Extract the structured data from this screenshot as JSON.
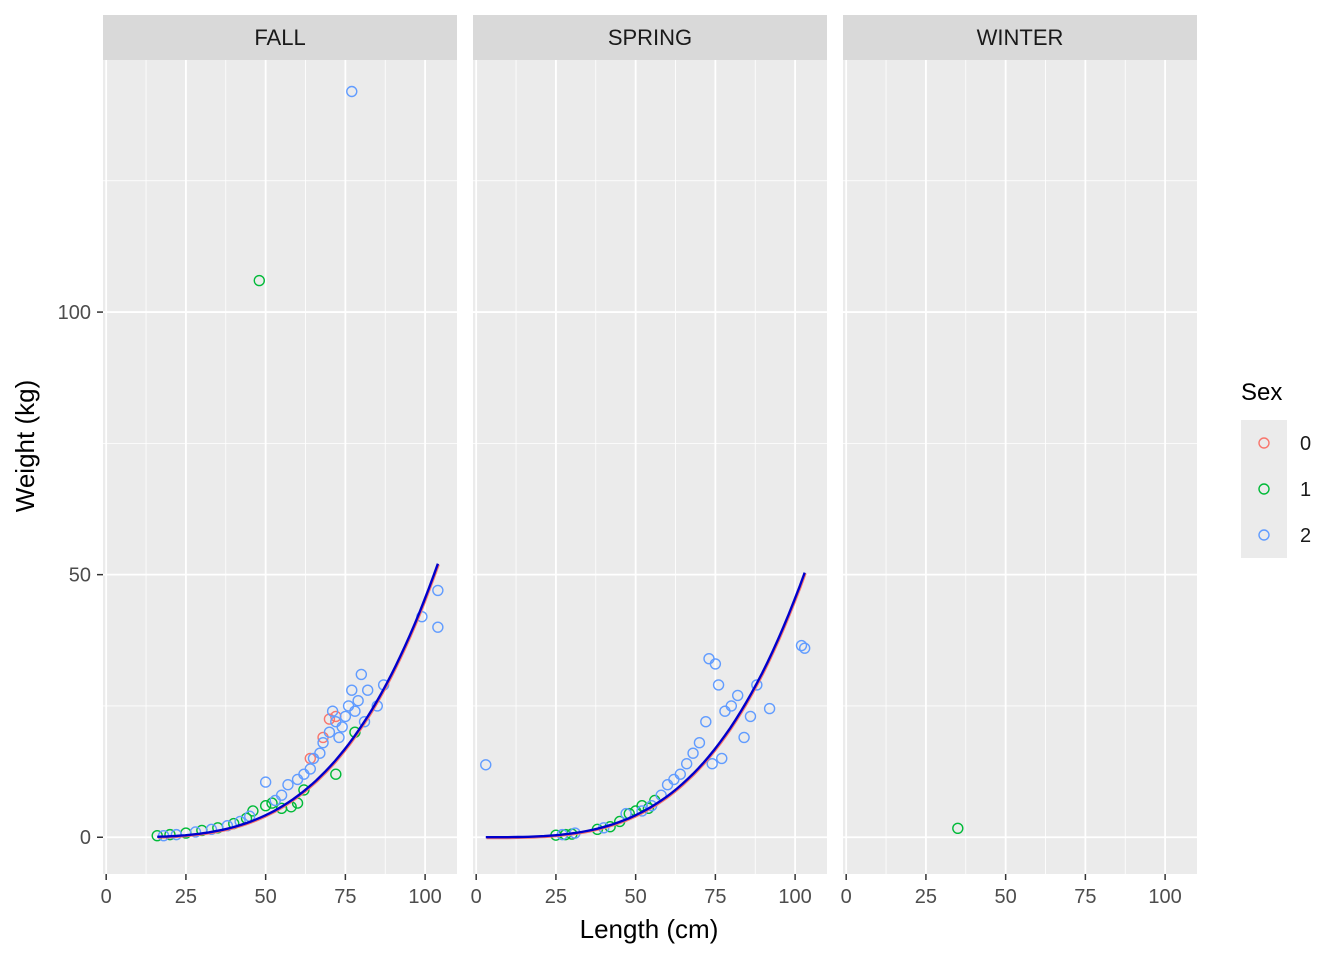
{
  "chart_data": {
    "type": "scatter",
    "xlabel": "Length (cm)",
    "ylabel": "Weight (kg)",
    "xlim": [
      -1,
      110
    ],
    "ylim": [
      -7,
      148
    ],
    "x_ticks": [
      0,
      25,
      50,
      75,
      100
    ],
    "y_ticks": [
      0,
      50,
      100
    ],
    "grid": true,
    "legend_position": "right",
    "legend": {
      "title": "Sex",
      "entries": [
        {
          "label": "0",
          "color": "#F8766D"
        },
        {
          "label": "1",
          "color": "#00BA38"
        },
        {
          "label": "2",
          "color": "#619CFF"
        }
      ]
    },
    "fit_line_colors": {
      "0": "#F8766D",
      "all": "#0000CC"
    },
    "panels": [
      {
        "facet": "FALL",
        "fit_x_range": [
          16,
          104
        ],
        "points": {
          "0": [
            [
              70,
              22.5
            ],
            [
              72,
              23
            ],
            [
              64,
              15
            ],
            [
              68,
              19
            ]
          ],
          "1": [
            [
              48,
              106
            ],
            [
              16,
              0.3
            ],
            [
              20,
              0.5
            ],
            [
              25,
              0.8
            ],
            [
              30,
              1.3
            ],
            [
              35,
              1.8
            ],
            [
              40,
              2.6
            ],
            [
              44,
              3.6
            ],
            [
              46,
              5
            ],
            [
              50,
              6
            ],
            [
              52,
              6.5
            ],
            [
              55,
              5.5
            ],
            [
              58,
              5.8
            ],
            [
              60,
              6.5
            ],
            [
              72,
              12
            ],
            [
              62,
              9
            ],
            [
              78,
              20
            ]
          ],
          "2": [
            [
              77,
              142
            ],
            [
              99,
              42
            ],
            [
              104,
              47
            ],
            [
              104,
              40
            ],
            [
              18,
              0.3
            ],
            [
              22,
              0.5
            ],
            [
              28,
              1
            ],
            [
              33,
              1.5
            ],
            [
              38,
              2.2
            ],
            [
              42,
              3
            ],
            [
              45,
              4
            ],
            [
              50,
              10.5
            ],
            [
              53,
              7
            ],
            [
              55,
              8
            ],
            [
              57,
              10
            ],
            [
              60,
              11
            ],
            [
              62,
              12
            ],
            [
              64,
              13
            ],
            [
              65,
              15
            ],
            [
              67,
              16
            ],
            [
              68,
              18
            ],
            [
              70,
              20
            ],
            [
              71,
              24
            ],
            [
              72,
              22
            ],
            [
              74,
              21
            ],
            [
              75,
              23
            ],
            [
              76,
              25
            ],
            [
              77,
              28
            ],
            [
              78,
              24
            ],
            [
              79,
              26
            ],
            [
              80,
              31
            ],
            [
              82,
              28
            ],
            [
              85,
              25
            ],
            [
              87,
              29
            ],
            [
              81,
              22
            ],
            [
              73,
              19
            ]
          ]
        }
      },
      {
        "facet": "SPRING",
        "fit_x_range": [
          3,
          103
        ],
        "points": {
          "0": [],
          "1": [
            [
              25,
              0.4
            ],
            [
              28,
              0.5
            ],
            [
              30,
              0.6
            ],
            [
              38,
              1.5
            ],
            [
              42,
              2
            ],
            [
              45,
              3
            ],
            [
              48,
              4.5
            ],
            [
              50,
              5
            ],
            [
              52,
              6
            ],
            [
              54,
              5.5
            ],
            [
              56,
              7
            ]
          ],
          "2": [
            [
              3,
              13.8
            ],
            [
              27,
              0.5
            ],
            [
              31,
              0.8
            ],
            [
              40,
              1.8
            ],
            [
              47,
              4.5
            ],
            [
              52,
              5
            ],
            [
              55,
              6
            ],
            [
              58,
              8
            ],
            [
              60,
              10
            ],
            [
              62,
              11
            ],
            [
              64,
              12
            ],
            [
              66,
              14
            ],
            [
              68,
              16
            ],
            [
              70,
              18
            ],
            [
              72,
              22
            ],
            [
              73,
              34
            ],
            [
              75,
              33
            ],
            [
              76,
              29
            ],
            [
              78,
              24
            ],
            [
              80,
              25
            ],
            [
              82,
              27
            ],
            [
              84,
              19
            ],
            [
              86,
              23
            ],
            [
              88,
              29
            ],
            [
              92,
              24.5
            ],
            [
              74,
              14
            ],
            [
              77,
              15
            ],
            [
              102,
              36.5
            ],
            [
              103,
              36
            ]
          ]
        }
      },
      {
        "facet": "WINTER",
        "fit_x_range": null,
        "points": {
          "0": [],
          "1": [
            [
              35,
              1.7
            ]
          ],
          "2": []
        }
      }
    ]
  }
}
